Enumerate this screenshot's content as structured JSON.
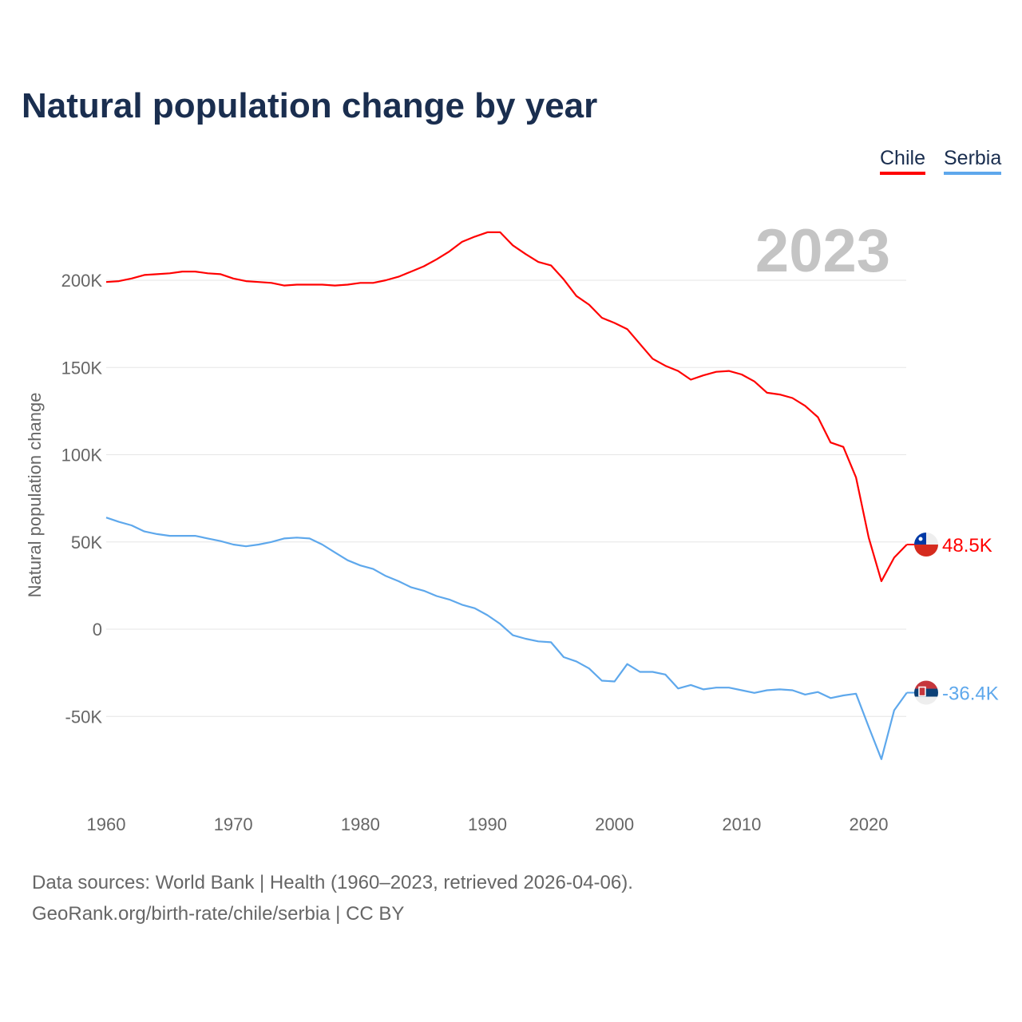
{
  "title": "Natural population change by year",
  "legend": [
    {
      "label": "Chile",
      "color": "#ff0000"
    },
    {
      "label": "Serbia",
      "color": "#5ea8ec"
    }
  ],
  "footer": {
    "line1": "Data sources: World Bank | Health (1960–2023, retrieved 2026-04-06).",
    "line2": "GeoRank.org/birth-rate/chile/serbia | CC BY"
  },
  "chart_data": {
    "type": "line",
    "title": "Natural population change by year",
    "xlabel": "",
    "ylabel": "Natural population change",
    "year_label": "2023",
    "x_ticks": [
      "1960",
      "1970",
      "1980",
      "1990",
      "2000",
      "2010",
      "2020"
    ],
    "y_ticks": [
      {
        "v": 200,
        "label": "200K"
      },
      {
        "v": 150,
        "label": "150K"
      },
      {
        "v": 100,
        "label": "100K"
      },
      {
        "v": 50,
        "label": "50K"
      },
      {
        "v": 0,
        "label": "0"
      },
      {
        "v": -50,
        "label": "-50K"
      }
    ],
    "units": "thousands",
    "x_start": 1960,
    "series": [
      {
        "name": "Chile",
        "color": "#ff0000",
        "end_label": "48.5K",
        "values": [
          199,
          199.5,
          201,
          203,
          203.5,
          204,
          205,
          205,
          204,
          203.5,
          201,
          199.5,
          199,
          198.5,
          197,
          197.5,
          197.5,
          197.5,
          197,
          197.5,
          198.5,
          198.5,
          200,
          202,
          205,
          208,
          212,
          216.5,
          222,
          225,
          227.5,
          227.5,
          220,
          215,
          210.5,
          208.5,
          200.5,
          191,
          186,
          178.5,
          175.5,
          172,
          163.5,
          155,
          151,
          148,
          143,
          145.5,
          147.5,
          148,
          146,
          142,
          135.5,
          134.5,
          132.5,
          128,
          121.5,
          107,
          104.5,
          87,
          52.5,
          27.5,
          41,
          48.5
        ]
      },
      {
        "name": "Serbia",
        "color": "#5ea8ec",
        "end_label": "-36.4K",
        "values": [
          64,
          61.5,
          59.5,
          56,
          54.5,
          53.5,
          53.5,
          53.5,
          52,
          50.5,
          48.5,
          47.5,
          48.5,
          50,
          52,
          52.5,
          52,
          48.5,
          44,
          39.5,
          36.5,
          34.5,
          30.5,
          27.5,
          24,
          22,
          19,
          17,
          14,
          12,
          8,
          3,
          -3.5,
          -5.5,
          -7,
          -7.5,
          -16,
          -18.5,
          -22.5,
          -29.5,
          -30,
          -20,
          -24.5,
          -24.5,
          -26,
          -34,
          -32,
          -34.5,
          -33.5,
          -33.5,
          -35,
          -36.5,
          -35,
          -34.5,
          -35,
          -37.5,
          -36,
          -39.5,
          -38,
          -37,
          -56,
          -74.5,
          -46.5,
          -36.4
        ]
      }
    ]
  }
}
